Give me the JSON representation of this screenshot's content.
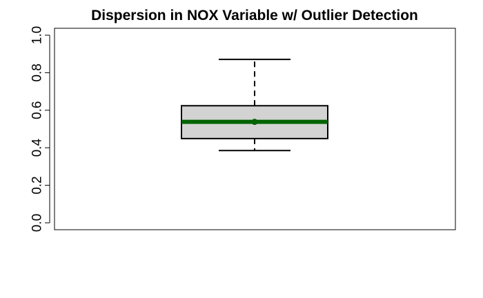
{
  "chart_data": {
    "type": "boxplot",
    "title": "Dispersion in NOX Variable w/ Outlier Detection",
    "xlabel": "",
    "ylabel": "",
    "ylim": [
      0.0,
      1.0
    ],
    "y_ticks": [
      "0.0",
      "0.2",
      "0.4",
      "0.6",
      "0.8",
      "1.0"
    ],
    "grid": false,
    "box": {
      "whisker_low": 0.385,
      "q1": 0.449,
      "median": 0.538,
      "mean": 0.5547,
      "q3": 0.624,
      "whisker_high": 0.871
    },
    "colors": {
      "box_fill": "#d3d3d3",
      "median_line": "#006400",
      "outline": "#000000"
    }
  }
}
